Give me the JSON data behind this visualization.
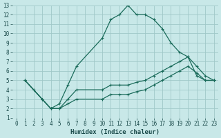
{
  "background_color": "#c8e8e8",
  "grid_color": "#a0c8c8",
  "line_color": "#1a6b5a",
  "series1_x": [
    1,
    2,
    3,
    4,
    5,
    6,
    7,
    10,
    11,
    12,
    13,
    14,
    15,
    16,
    17,
    18,
    19,
    20,
    21,
    22,
    23
  ],
  "series1_y": [
    5,
    4,
    3,
    2,
    2.5,
    4.5,
    6.5,
    9.5,
    11.5,
    12,
    13,
    12,
    12,
    11.5,
    10.5,
    9,
    8,
    7.5,
    5.5,
    5,
    5
  ],
  "series2_x": [
    1,
    3,
    4,
    5,
    6,
    7,
    10,
    11,
    12,
    13,
    14,
    15,
    16,
    17,
    18,
    19,
    20,
    21,
    22,
    23
  ],
  "series2_y": [
    5,
    3,
    2,
    2,
    3,
    4,
    4,
    4.5,
    4.5,
    4.5,
    4.8,
    5,
    5.5,
    6,
    6.5,
    7,
    7.5,
    6.5,
    5.5,
    5
  ],
  "series3_x": [
    1,
    3,
    4,
    5,
    6,
    7,
    10,
    11,
    12,
    13,
    14,
    15,
    16,
    17,
    18,
    19,
    20,
    21,
    22,
    23
  ],
  "series3_y": [
    5,
    3,
    2,
    2,
    2.5,
    3,
    3,
    3.5,
    3.5,
    3.5,
    3.8,
    4,
    4.5,
    5,
    5.5,
    6,
    6.5,
    5.8,
    5,
    5
  ],
  "xlim": [
    -0.5,
    23.5
  ],
  "ylim": [
    1,
    13
  ],
  "xticks": [
    0,
    1,
    2,
    3,
    4,
    5,
    6,
    7,
    8,
    9,
    10,
    11,
    12,
    13,
    14,
    15,
    16,
    17,
    18,
    19,
    20,
    21,
    22,
    23
  ],
  "yticks": [
    1,
    2,
    3,
    4,
    5,
    6,
    7,
    8,
    9,
    10,
    11,
    12,
    13
  ],
  "xlabel": "Humidex (Indice chaleur)",
  "axis_fontsize": 5.5,
  "xlabel_fontsize": 6.5
}
